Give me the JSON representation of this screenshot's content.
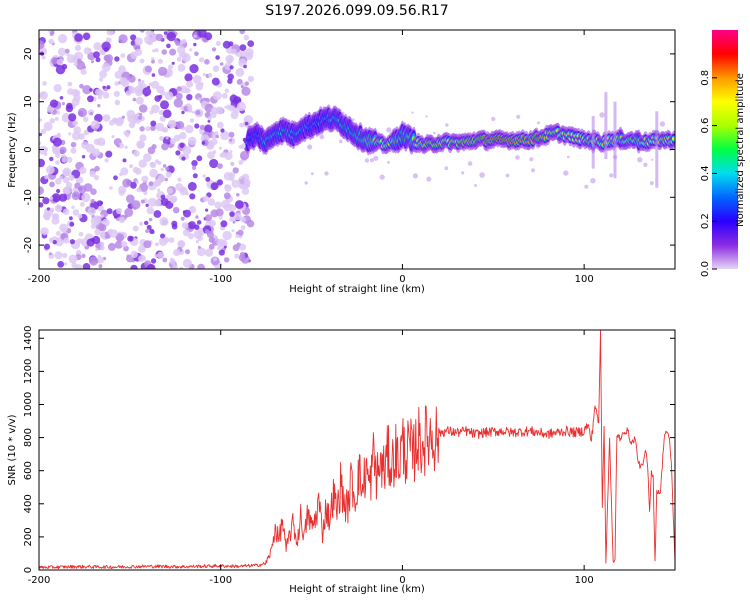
{
  "chart_data": [
    {
      "type": "heatmap",
      "title": "S197.2026.099.09.56.R17",
      "xlabel": "Height of straight line (km)",
      "ylabel": "Frequency (Hz)",
      "xlim": [
        -200,
        150
      ],
      "ylim": [
        -25,
        25
      ],
      "xticks": [
        -200,
        -100,
        0,
        100
      ],
      "xtick_labels": [
        "-200",
        "-100",
        "0",
        "100"
      ],
      "yticks": [
        -20,
        -10,
        0,
        10,
        20
      ],
      "ytick_labels": [
        "-20",
        "-10",
        "0",
        "10",
        "20"
      ],
      "colorbar": {
        "label": "Normalized spectral amplitude",
        "range": [
          0,
          1
        ],
        "ticks": [
          0,
          0.2,
          0.4,
          0.6,
          0.8
        ],
        "tick_labels": [
          "0.0",
          "0.2",
          "0.4",
          "0.6",
          "0.8"
        ],
        "colormap": [
          "#e6d5f5",
          "#8a2be2",
          "#2a00ff",
          "#0066ff",
          "#00ddee",
          "#00ff44",
          "#aaff00",
          "#ffff00",
          "#ff9900",
          "#ff0000",
          "#ff0088"
        ]
      },
      "noise_region_x": [
        -200,
        -83
      ],
      "ridge": [
        {
          "x": -85,
          "y": 2,
          "a": 0.35
        },
        {
          "x": -80,
          "y": 3,
          "a": 0.3
        },
        {
          "x": -75,
          "y": 1.5,
          "a": 0.45
        },
        {
          "x": -70,
          "y": 3.5,
          "a": 0.4
        },
        {
          "x": -65,
          "y": 4,
          "a": 0.45
        },
        {
          "x": -60,
          "y": 3,
          "a": 0.4
        },
        {
          "x": -55,
          "y": 4.5,
          "a": 0.4
        },
        {
          "x": -50,
          "y": 5,
          "a": 0.35
        },
        {
          "x": -45,
          "y": 6,
          "a": 0.35
        },
        {
          "x": -40,
          "y": 6.5,
          "a": 0.4
        },
        {
          "x": -35,
          "y": 6,
          "a": 0.45
        },
        {
          "x": -30,
          "y": 4.5,
          "a": 0.45
        },
        {
          "x": -25,
          "y": 3,
          "a": 0.5
        },
        {
          "x": -20,
          "y": 2,
          "a": 0.55
        },
        {
          "x": -15,
          "y": 1.5,
          "a": 0.6
        },
        {
          "x": -10,
          "y": 1,
          "a": 0.7
        },
        {
          "x": -5,
          "y": 1.5,
          "a": 0.6
        },
        {
          "x": 0,
          "y": 3,
          "a": 0.5
        },
        {
          "x": 5,
          "y": 2,
          "a": 0.55
        },
        {
          "x": 10,
          "y": 1,
          "a": 0.7
        },
        {
          "x": 15,
          "y": 1,
          "a": 0.8
        },
        {
          "x": 20,
          "y": 1.5,
          "a": 0.75
        },
        {
          "x": 25,
          "y": 1.5,
          "a": 0.7
        },
        {
          "x": 30,
          "y": 1.5,
          "a": 0.75
        },
        {
          "x": 35,
          "y": 1.5,
          "a": 0.8
        },
        {
          "x": 40,
          "y": 2,
          "a": 0.8
        },
        {
          "x": 45,
          "y": 2,
          "a": 0.85
        },
        {
          "x": 50,
          "y": 2,
          "a": 0.85
        },
        {
          "x": 55,
          "y": 2,
          "a": 0.9
        },
        {
          "x": 60,
          "y": 2,
          "a": 0.85
        },
        {
          "x": 65,
          "y": 2,
          "a": 0.8
        },
        {
          "x": 70,
          "y": 2,
          "a": 0.8
        },
        {
          "x": 75,
          "y": 2.5,
          "a": 0.85
        },
        {
          "x": 80,
          "y": 3,
          "a": 0.75
        },
        {
          "x": 85,
          "y": 3.5,
          "a": 0.7
        },
        {
          "x": 90,
          "y": 3,
          "a": 0.7
        },
        {
          "x": 95,
          "y": 2.5,
          "a": 0.7
        },
        {
          "x": 100,
          "y": 2,
          "a": 0.65
        },
        {
          "x": 105,
          "y": 2,
          "a": 0.6
        },
        {
          "x": 110,
          "y": 1.5,
          "a": 0.75
        },
        {
          "x": 115,
          "y": 2,
          "a": 0.65
        },
        {
          "x": 120,
          "y": 2,
          "a": 0.6
        },
        {
          "x": 125,
          "y": 2,
          "a": 0.65
        },
        {
          "x": 130,
          "y": 2,
          "a": 0.6
        },
        {
          "x": 135,
          "y": 1.5,
          "a": 0.65
        },
        {
          "x": 140,
          "y": 2,
          "a": 0.7
        },
        {
          "x": 145,
          "y": 2,
          "a": 0.75
        },
        {
          "x": 150,
          "y": 2,
          "a": 0.65
        }
      ]
    },
    {
      "type": "line",
      "xlabel": "Height of straight line (km)",
      "ylabel": "SNR (10 * v/v)",
      "xlim": [
        -200,
        150
      ],
      "ylim": [
        0,
        1450
      ],
      "xticks": [
        -200,
        -100,
        0,
        100
      ],
      "xtick_labels": [
        "-200",
        "-100",
        "0",
        "100"
      ],
      "yticks": [
        0,
        200,
        400,
        600,
        800,
        1000,
        1200,
        1400
      ],
      "ytick_labels": [
        "0",
        "200",
        "400",
        "600",
        "800",
        "1000",
        "1200",
        "1400"
      ],
      "color": "#e83030",
      "series": [
        {
          "name": "SNR",
          "x": [
            -200,
            -180,
            -160,
            -140,
            -120,
            -100,
            -90,
            -80,
            -75,
            -72,
            -70,
            -68,
            -66,
            -64,
            -62,
            -60,
            -58,
            -56,
            -54,
            -52,
            -50,
            -48,
            -46,
            -44,
            -42,
            -40,
            -38,
            -36,
            -34,
            -32,
            -30,
            -28,
            -26,
            -24,
            -22,
            -20,
            -18,
            -16,
            -14,
            -12,
            -10,
            -8,
            -6,
            -4,
            -2,
            0,
            2,
            4,
            6,
            8,
            10,
            12,
            14,
            16,
            18,
            20,
            25,
            30,
            35,
            40,
            45,
            50,
            55,
            60,
            65,
            70,
            75,
            80,
            85,
            90,
            95,
            100,
            102,
            104,
            106,
            108,
            109,
            110,
            111,
            112,
            114,
            116,
            117,
            118,
            119,
            120,
            122,
            124,
            126,
            128,
            130,
            132,
            134,
            135,
            136,
            137,
            138,
            139,
            140,
            142,
            144,
            145,
            146,
            147,
            148,
            150
          ],
          "y": [
            15,
            20,
            18,
            22,
            20,
            25,
            22,
            28,
            40,
            120,
            260,
            180,
            300,
            120,
            220,
            280,
            160,
            320,
            200,
            340,
            260,
            300,
            420,
            220,
            380,
            300,
            460,
            350,
            520,
            400,
            380,
            550,
            420,
            600,
            480,
            620,
            500,
            680,
            560,
            640,
            600,
            700,
            620,
            720,
            650,
            760,
            700,
            740,
            680,
            800,
            760,
            780,
            800,
            820,
            800,
            830,
            840,
            830,
            840,
            820,
            830,
            835,
            840,
            830,
            835,
            840,
            830,
            820,
            830,
            840,
            830,
            840,
            880,
            780,
            1000,
            880,
            1450,
            380,
            880,
            60,
            800,
            40,
            50,
            800,
            820,
            780,
            840,
            840,
            760,
            800,
            640,
            620,
            720,
            620,
            360,
            600,
            560,
            40,
            480,
            470,
            800,
            840,
            820,
            780,
            640,
            40
          ]
        }
      ]
    }
  ]
}
